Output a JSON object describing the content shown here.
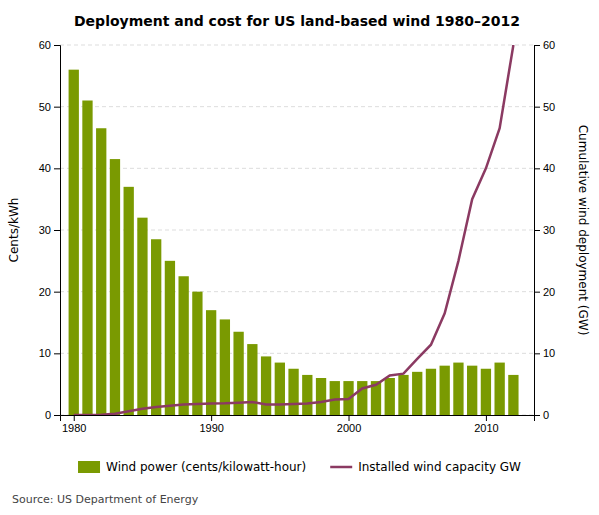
{
  "chart_data": {
    "type": "bar",
    "title": "Deployment and cost for US land-based wind 1980–2012",
    "x": [
      1980,
      1981,
      1982,
      1983,
      1984,
      1985,
      1986,
      1987,
      1988,
      1989,
      1990,
      1991,
      1992,
      1993,
      1994,
      1995,
      1996,
      1997,
      1998,
      1999,
      2000,
      2001,
      2002,
      2003,
      2004,
      2005,
      2006,
      2007,
      2008,
      2009,
      2010,
      2011,
      2012
    ],
    "series": [
      {
        "name": "Wind power (cents/kilowatt-hour)",
        "type": "bar",
        "color": "#7a9a01",
        "values": [
          56,
          51,
          46.5,
          41.5,
          37,
          32,
          28.5,
          25,
          22.5,
          20,
          17,
          15.5,
          13.5,
          11.5,
          9.5,
          8.5,
          7.5,
          6.5,
          6,
          5.5,
          5.5,
          5.5,
          5.5,
          6,
          6.5,
          7,
          7.5,
          8,
          8.5,
          8,
          7.5,
          8.5,
          6.5
        ]
      },
      {
        "name": "Installed wind capacity GW",
        "type": "line",
        "color": "#8b3a62",
        "axis": "y2",
        "values": [
          0.01,
          0.01,
          0.05,
          0.2,
          0.6,
          1.0,
          1.3,
          1.5,
          1.7,
          1.8,
          1.85,
          1.9,
          2.0,
          2.1,
          1.7,
          1.7,
          1.8,
          1.85,
          2.1,
          2.5,
          2.6,
          4.3,
          4.9,
          6.4,
          6.7,
          9.1,
          11.4,
          16.5,
          25.0,
          35.0,
          40.0,
          46.5,
          60.0
        ]
      }
    ],
    "xlim": [
      1979,
      2013.5
    ],
    "xticks": [
      1980,
      1990,
      2000,
      2010
    ],
    "ylim": [
      0,
      60
    ],
    "yticks": [
      0,
      10,
      20,
      30,
      40,
      50,
      60
    ],
    "y2lim": [
      0,
      60
    ],
    "y2ticks": [
      0,
      10,
      20,
      30,
      40,
      50,
      60
    ],
    "y_label": "Cents/kWh",
    "y2_label": "Cumulative wind deployment (GW)",
    "annotation": "Source: US Department of Energy",
    "grid": true,
    "legend": "bottom"
  }
}
